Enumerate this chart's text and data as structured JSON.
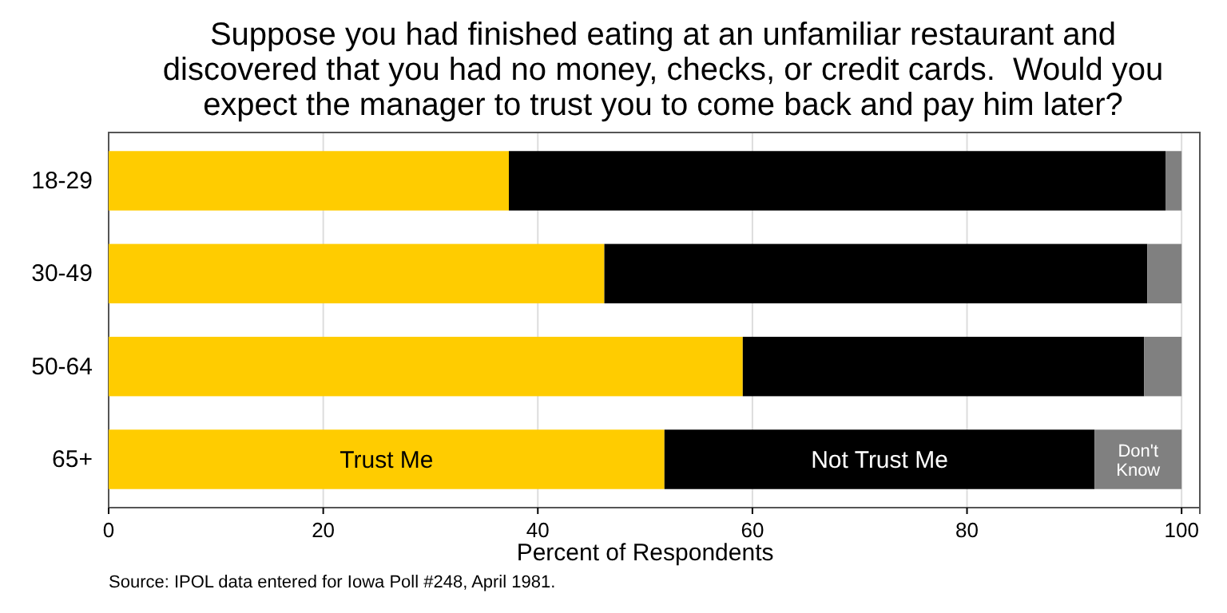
{
  "chart_data": {
    "type": "bar",
    "orientation": "horizontal",
    "stacked": true,
    "title": "Suppose you had finished eating at an unfamiliar restaurant and discovered that you had no money, checks, or credit cards.  Would you expect the manager to trust you to come back and pay him later?",
    "xlabel": "Percent of Respondents",
    "categories": [
      "18-29",
      "30-49",
      "50-64",
      "65+"
    ],
    "series": [
      {
        "name": "Trust Me",
        "color": "#ffcc00",
        "values": [
          37.3,
          46.2,
          59.1,
          51.8
        ]
      },
      {
        "name": "Not Trust Me",
        "color": "#000000",
        "values": [
          61.2,
          50.6,
          37.4,
          40.1
        ]
      },
      {
        "name": "Don't Know",
        "color": "#808080",
        "values": [
          1.5,
          3.2,
          3.5,
          8.1
        ]
      }
    ],
    "xlim": [
      0,
      101.7
    ],
    "xticks": [
      0,
      20,
      40,
      60,
      80,
      100
    ],
    "grid": "x",
    "legend": false,
    "annotations": [
      "Source: IPOL data entered for Iowa Poll #248, April 1981."
    ]
  }
}
